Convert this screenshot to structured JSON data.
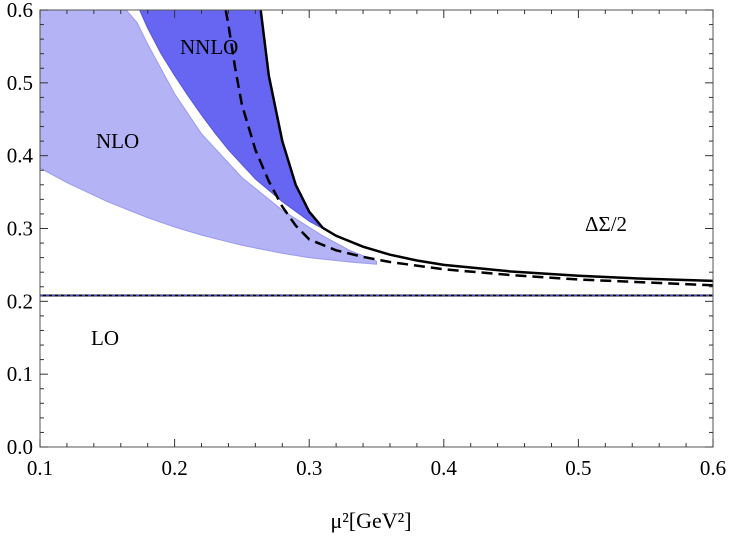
{
  "chart_data": {
    "type": "area",
    "xlabel": "μ²[GeV²]",
    "xlim": [
      0.1,
      0.6
    ],
    "ylim": [
      0.0,
      0.6
    ],
    "x_ticks": [
      "0.1",
      "0.2",
      "0.3",
      "0.4",
      "0.5",
      "0.6"
    ],
    "y_ticks": [
      "0.0",
      "0.1",
      "0.2",
      "0.3",
      "0.4",
      "0.5",
      "0.6"
    ],
    "grid": false,
    "annotations": [
      "NNLO",
      "NLO",
      "ΔΣ/2",
      "LO"
    ],
    "colors": {
      "nlo_band": "#b3b3f5",
      "nnlo_band": "#6666f2",
      "lo_line": "#4444cc",
      "curves": "#000000"
    },
    "series": [
      {
        "name": "NLO",
        "kind": "band",
        "lower": {
          "x": [
            0.1,
            0.12,
            0.15,
            0.18,
            0.2,
            0.22,
            0.25,
            0.28,
            0.3,
            0.33,
            0.35
          ],
          "y": [
            0.383,
            0.363,
            0.337,
            0.315,
            0.302,
            0.291,
            0.277,
            0.266,
            0.26,
            0.254,
            0.251
          ]
        },
        "upper": {
          "x": [
            0.1,
            0.15,
            0.164,
            0.172,
            0.18,
            0.2,
            0.22,
            0.25,
            0.28,
            0.31,
            0.33,
            0.35
          ],
          "y": [
            0.6,
            0.6,
            0.6,
            0.583,
            0.553,
            0.485,
            0.43,
            0.37,
            0.325,
            0.29,
            0.27,
            0.255
          ]
        }
      },
      {
        "name": "NNLO",
        "kind": "band",
        "left": {
          "x": [
            0.174,
            0.18,
            0.19,
            0.2,
            0.21,
            0.22,
            0.23,
            0.24,
            0.26,
            0.28,
            0.3,
            0.32
          ],
          "y": [
            0.6,
            0.575,
            0.54,
            0.51,
            0.482,
            0.456,
            0.431,
            0.408,
            0.368,
            0.337,
            0.31,
            0.29
          ]
        },
        "right": {
          "x": [
            0.264,
            0.27,
            0.28,
            0.29,
            0.3,
            0.31,
            0.32
          ],
          "y": [
            0.6,
            0.51,
            0.42,
            0.36,
            0.323,
            0.301,
            0.29
          ]
        }
      },
      {
        "name": "",
        "kind": "line",
        "style": "solid",
        "x": [
          0.264,
          0.27,
          0.28,
          0.29,
          0.3,
          0.31,
          0.32,
          0.34,
          0.36,
          0.38,
          0.4,
          0.45,
          0.5,
          0.55,
          0.6
        ],
        "y": [
          0.6,
          0.51,
          0.42,
          0.36,
          0.323,
          0.301,
          0.29,
          0.275,
          0.264,
          0.256,
          0.25,
          0.241,
          0.235,
          0.231,
          0.228
        ]
      },
      {
        "name": "",
        "kind": "line",
        "style": "dashed",
        "x": [
          0.238,
          0.24,
          0.245,
          0.25,
          0.26,
          0.27,
          0.28,
          0.29,
          0.3,
          0.32,
          0.34,
          0.36,
          0.4,
          0.45,
          0.5,
          0.55,
          0.6
        ],
        "y": [
          0.6,
          0.58,
          0.52,
          0.47,
          0.408,
          0.365,
          0.33,
          0.304,
          0.285,
          0.27,
          0.261,
          0.254,
          0.244,
          0.236,
          0.23,
          0.226,
          0.222
        ]
      },
      {
        "name": "LO",
        "kind": "hline",
        "y": 0.208
      }
    ]
  }
}
